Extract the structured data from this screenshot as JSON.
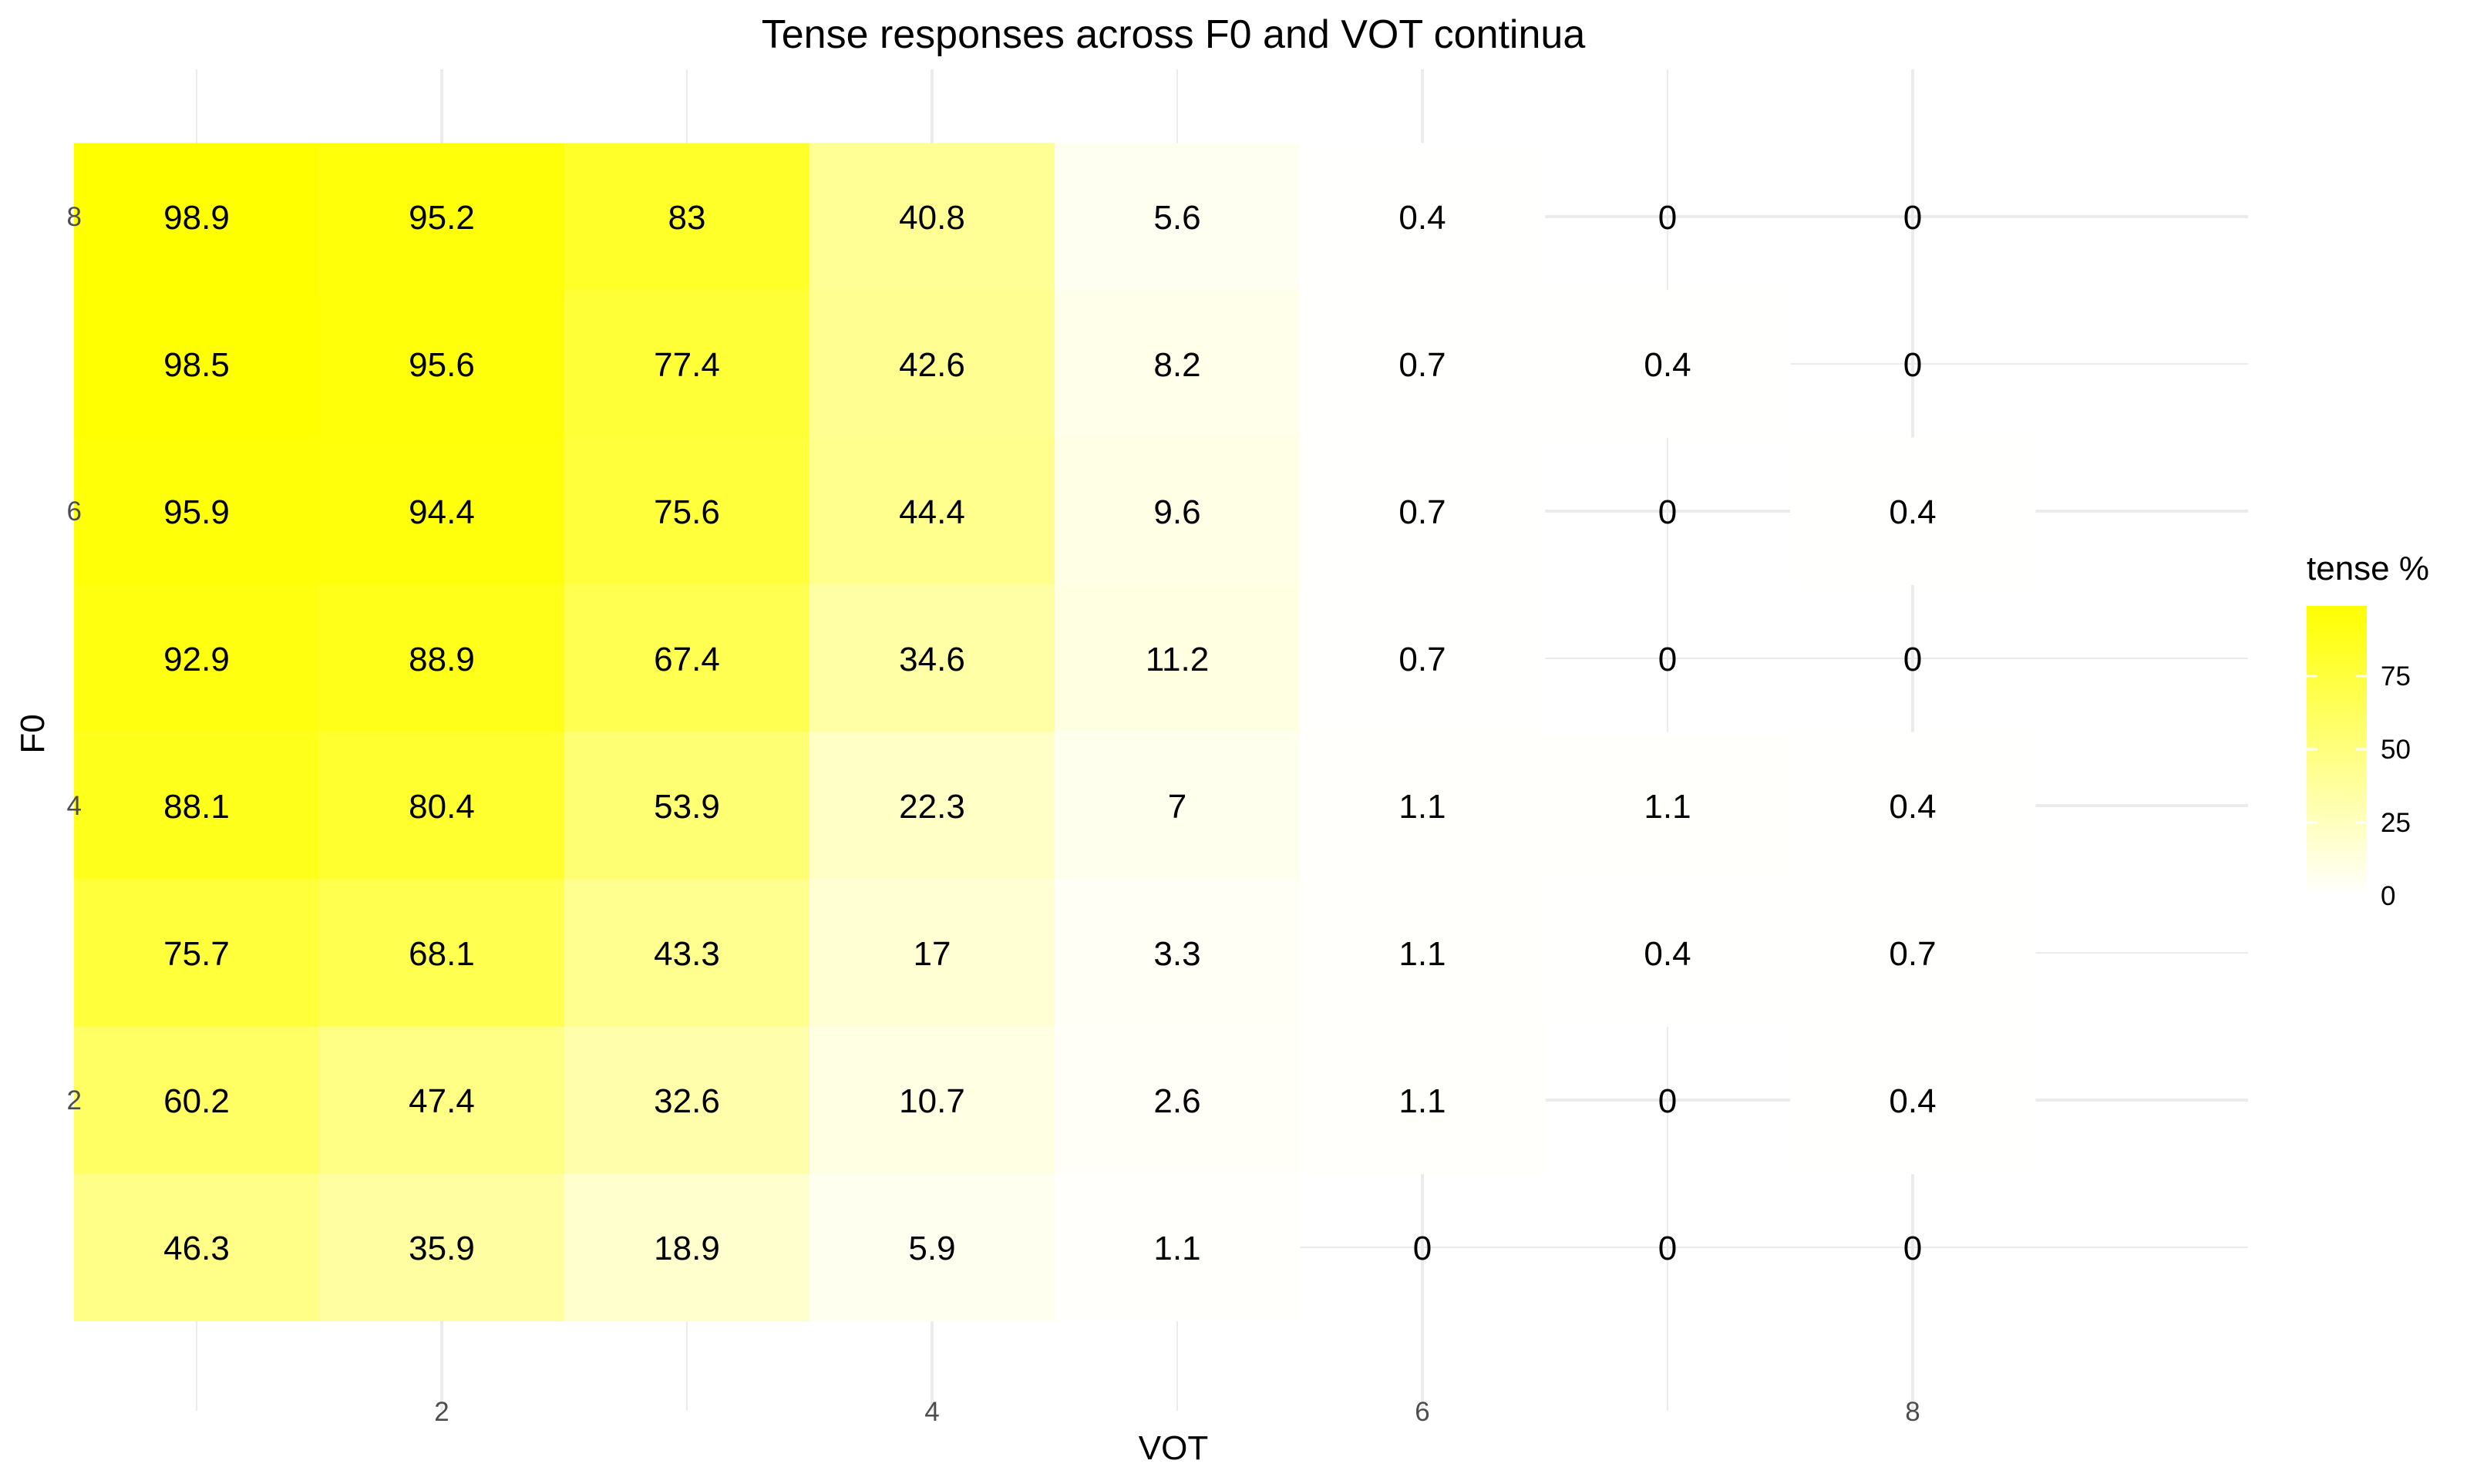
{
  "chart_data": {
    "type": "heatmap",
    "title": "Tense responses across F0 and VOT continua",
    "xlabel": "VOT",
    "ylabel": "F0",
    "x_categories": [
      1,
      2,
      3,
      4,
      5,
      6,
      7,
      8
    ],
    "y_categories": [
      1,
      2,
      3,
      4,
      5,
      6,
      7,
      8
    ],
    "x_ticks": [
      2,
      4,
      6,
      8
    ],
    "y_ticks": [
      2,
      4,
      6,
      8
    ],
    "xlim": [
      0.5,
      9.3
    ],
    "ylim": [
      0.5,
      8.5
    ],
    "grid": true,
    "legend": {
      "title": "tense %",
      "position": "right",
      "ticks": [
        0,
        25,
        50,
        75
      ],
      "range": [
        0,
        98.9
      ]
    },
    "colors": {
      "low": "#FFFFFF",
      "high": "#FFFF00",
      "grid": "#EBEBEB",
      "text": "#000000",
      "tick_text": "#4D4D4D"
    },
    "rows": [
      {
        "f0": 8,
        "values": [
          98.9,
          95.2,
          83,
          40.8,
          5.6,
          0.4,
          0,
          0
        ]
      },
      {
        "f0": 7,
        "values": [
          98.5,
          95.6,
          77.4,
          42.6,
          8.2,
          0.7,
          0.4,
          0
        ]
      },
      {
        "f0": 6,
        "values": [
          95.9,
          94.4,
          75.6,
          44.4,
          9.6,
          0.7,
          0,
          0.4
        ]
      },
      {
        "f0": 5,
        "values": [
          92.9,
          88.9,
          67.4,
          34.6,
          11.2,
          0.7,
          0,
          0
        ]
      },
      {
        "f0": 4,
        "values": [
          88.1,
          80.4,
          53.9,
          22.3,
          7,
          1.1,
          1.1,
          0.4
        ]
      },
      {
        "f0": 3,
        "values": [
          75.7,
          68.1,
          43.3,
          17,
          3.3,
          1.1,
          0.4,
          0.7
        ]
      },
      {
        "f0": 2,
        "values": [
          60.2,
          47.4,
          32.6,
          10.7,
          2.6,
          1.1,
          0,
          0.4
        ]
      },
      {
        "f0": 1,
        "values": [
          46.3,
          35.9,
          18.9,
          5.9,
          1.1,
          0,
          0,
          0
        ]
      }
    ]
  }
}
